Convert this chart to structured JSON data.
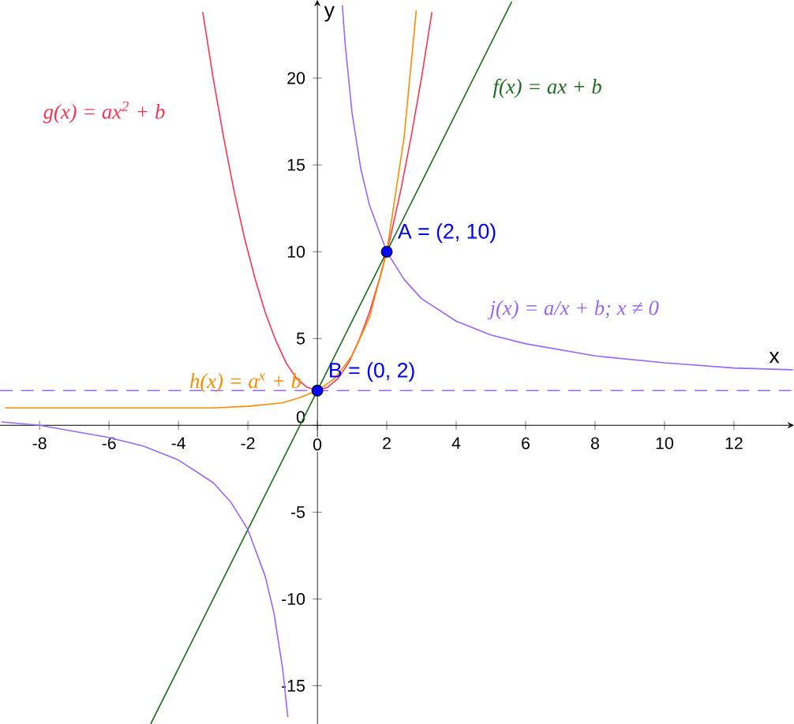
{
  "chart_data": {
    "type": "line",
    "xlabel": "x",
    "ylabel": "y",
    "xlim": [
      -9.14,
      13.73
    ],
    "ylim": [
      -17.2,
      24.5
    ],
    "xticks": [
      -8,
      -6,
      -4,
      -2,
      0,
      2,
      4,
      6,
      8,
      10,
      12
    ],
    "yticks": [
      -15,
      -10,
      -5,
      0,
      5,
      10,
      15,
      20
    ],
    "grid": false,
    "ref_lines": [
      {
        "axis": "y",
        "value": 2,
        "color": "#9966ff",
        "line_style": "dashed"
      }
    ],
    "series": [
      {
        "name": "f(x) = ax + b",
        "color": "#1e6b1e",
        "x": [
          -4.8,
          -2,
          0,
          2,
          5.6
        ],
        "values": [
          -17.2,
          -6,
          2,
          10,
          24.4
        ]
      },
      {
        "name": "g(x) = ax$^{2}$ + b",
        "color": "#ff3355",
        "x": [
          -3.3,
          -3.0,
          -2.7,
          -2.4,
          -2.1,
          -1.8,
          -1.5,
          -1.2,
          -0.9,
          -0.6,
          -0.3,
          0,
          0.3,
          0.6,
          0.9,
          1.2,
          1.5,
          1.8,
          2.1,
          2.4,
          2.7,
          3.0,
          3.3
        ],
        "values": [
          23.8,
          20,
          16.6,
          13.5,
          10.8,
          8.5,
          6.5,
          4.9,
          3.6,
          2.7,
          2.2,
          2,
          2.2,
          2.7,
          3.6,
          4.9,
          6.5,
          8.5,
          10.8,
          13.5,
          16.6,
          20,
          23.8
        ]
      },
      {
        "name": "h(x) = a$^{x}$ + b",
        "color": "#ff8c00",
        "x": [
          -9,
          -6,
          -4,
          -3,
          -2,
          -1,
          -0.5,
          0,
          0.5,
          1,
          1.5,
          2,
          2.5,
          2.85
        ],
        "values": [
          1.0,
          1.0,
          1.0,
          1.0,
          1.1,
          1.3,
          1.6,
          2,
          2.7,
          4,
          6.2,
          10,
          16.6,
          23.9
        ]
      },
      {
        "name": "j(x) = a/x + b; x ≠ 0",
        "color": "#9966ff",
        "x": [
          0.72,
          0.8,
          1,
          1.25,
          1.5,
          2,
          2.5,
          3,
          4,
          5,
          6,
          8,
          10,
          12,
          13.7
        ],
        "values": [
          24.2,
          22,
          18,
          14.8,
          12.7,
          10,
          8.4,
          7.3,
          6,
          5.2,
          4.7,
          4,
          3.6,
          3.3,
          3.2
        ]
      },
      {
        "color": "#9966ff",
        "x": [
          -9.1,
          -8,
          -6,
          -5,
          -4,
          -3,
          -2.5,
          -2,
          -1.5,
          -1.25,
          -1,
          -0.85
        ],
        "values": [
          0.2,
          0,
          -0.7,
          -1.2,
          -2,
          -3.3,
          -4.4,
          -6,
          -8.7,
          -10.8,
          -14,
          -16.8
        ]
      },
      {
        "type": "scatter",
        "marker": "circle",
        "color": "#0000ff",
        "x": [
          0,
          2
        ],
        "values": [
          2,
          10
        ],
        "value_labels": [
          "B = (0, 2)",
          "A = (2, 10)"
        ]
      }
    ]
  }
}
